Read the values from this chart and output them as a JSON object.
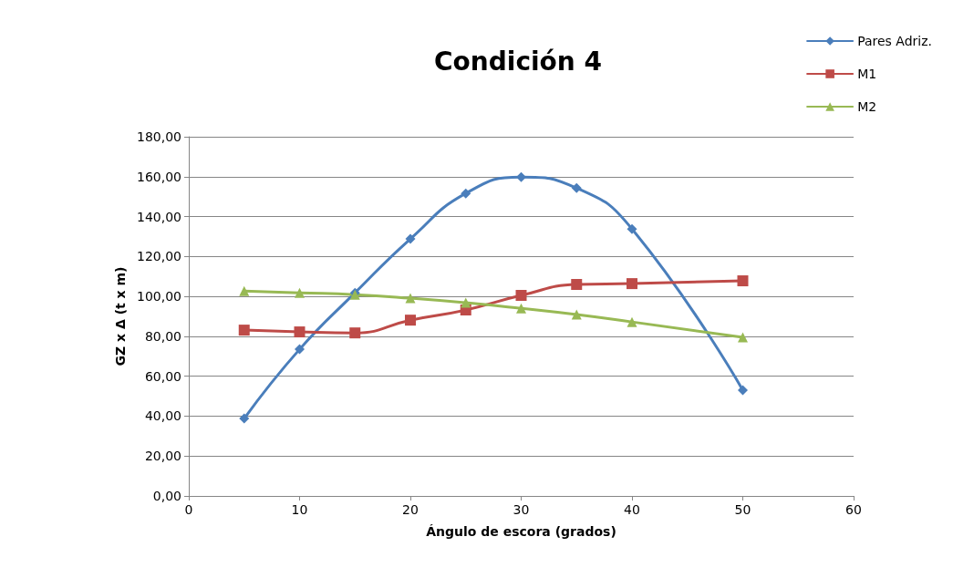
{
  "chart_data": {
    "type": "line",
    "title": "Condición 4",
    "xlabel": "Ángulo de escora (grados)",
    "ylabel": "GZ x Δ (t x m)",
    "x": [
      5,
      10,
      15,
      20,
      25,
      30,
      35,
      40,
      50
    ],
    "series": [
      {
        "name": "Pares Adriz.",
        "color": "#4a7ebb",
        "marker": "diamond",
        "values": [
          38.8,
          73.5,
          101.8,
          128.8,
          151.6,
          159.8,
          154.3,
          133.8,
          53
        ]
      },
      {
        "name": "M1",
        "color": "#be4b48",
        "marker": "square",
        "values": [
          83.1,
          82.2,
          81.7,
          88.1,
          93.2,
          100.5,
          106,
          106.4,
          107.8
        ]
      },
      {
        "name": "M2",
        "color": "#98b954",
        "marker": "triangle",
        "values": [
          102.7,
          101.8,
          100.9,
          99.1,
          96.8,
          94,
          90.9,
          87.2,
          79.5
        ]
      }
    ],
    "xlim": [
      0,
      60
    ],
    "xticks": [
      0,
      10,
      20,
      30,
      40,
      50,
      60
    ],
    "ylim": [
      0,
      180
    ],
    "yticks": [
      {
        "value": 0,
        "label": "0,00"
      },
      {
        "value": 20,
        "label": "20,00"
      },
      {
        "value": 40,
        "label": "40,00"
      },
      {
        "value": 60,
        "label": "60,00"
      },
      {
        "value": 80,
        "label": "80,00"
      },
      {
        "value": 100,
        "label": "100,00"
      },
      {
        "value": 120,
        "label": "120,00"
      },
      {
        "value": 140,
        "label": "140,00"
      },
      {
        "value": 160,
        "label": "160,00"
      },
      {
        "value": 180,
        "label": "180,00"
      }
    ],
    "grid": "y",
    "legend": "top right",
    "line_style": "solid"
  }
}
